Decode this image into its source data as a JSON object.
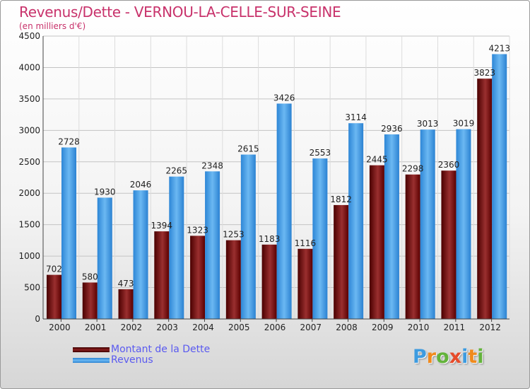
{
  "header": {
    "title": "Revenus/Dette - VERNOU-LA-CELLE-SUR-SEINE",
    "subtitle": "(en milliers d'€)"
  },
  "legend": {
    "items": [
      {
        "label": "Montant de la Dette",
        "color": "#6a0000"
      },
      {
        "label": "Revenus",
        "color": "#3399e6"
      }
    ]
  },
  "logo": {
    "letters": [
      "P",
      "r",
      "o",
      "x",
      "i",
      "t",
      "i"
    ],
    "colors": [
      "#3d9be0",
      "#f08a1c",
      "#63b33b",
      "#e64c2b",
      "#3d9be0",
      "#f08a1c",
      "#63b33b"
    ]
  },
  "chart_data": {
    "type": "bar",
    "title": "Revenus/Dette - VERNOU-LA-CELLE-SUR-SEINE",
    "ylabel": "(en milliers d'€)",
    "xlabel": "",
    "ylim": [
      0,
      4500
    ],
    "yticks": [
      0,
      500,
      1000,
      1500,
      2000,
      2500,
      3000,
      3500,
      4000,
      4500
    ],
    "grid": true,
    "legend_position": "bottom-left",
    "categories": [
      "2000",
      "2001",
      "2002",
      "2003",
      "2004",
      "2005",
      "2006",
      "2007",
      "2008",
      "2009",
      "2010",
      "2011",
      "2012"
    ],
    "series": [
      {
        "name": "Montant de la Dette",
        "color": "#6a0000",
        "values": [
          702,
          580,
          473,
          1394,
          1323,
          1253,
          1183,
          1116,
          1812,
          2445,
          2298,
          2360,
          3823
        ]
      },
      {
        "name": "Revenus",
        "color": "#3399e6",
        "values": [
          2728,
          1930,
          2046,
          2265,
          2348,
          2615,
          3426,
          2553,
          3114,
          2936,
          3013,
          3019,
          4213
        ]
      }
    ]
  }
}
